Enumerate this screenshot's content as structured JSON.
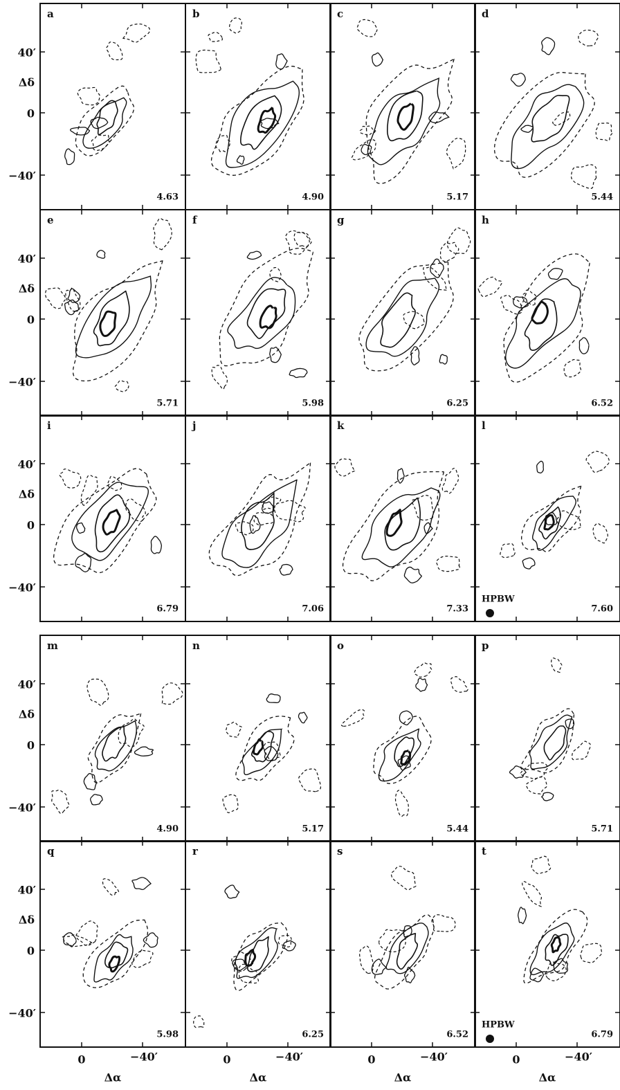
{
  "panels": [
    {
      "letter": "a",
      "velocity": "4.63"
    },
    {
      "letter": "b",
      "velocity": "4.90"
    },
    {
      "letter": "c",
      "velocity": "5.17"
    },
    {
      "letter": "d",
      "velocity": "5.44"
    },
    {
      "letter": "e",
      "velocity": "5.71"
    },
    {
      "letter": "f",
      "velocity": "5.98"
    },
    {
      "letter": "g",
      "velocity": "6.25"
    },
    {
      "letter": "h",
      "velocity": "6.52"
    },
    {
      "letter": "i",
      "velocity": "6.79"
    },
    {
      "letter": "j",
      "velocity": "7.06"
    },
    {
      "letter": "k",
      "velocity": "7.33"
    },
    {
      "letter": "l",
      "velocity": "7.60"
    },
    {
      "letter": "m",
      "velocity": "4.90"
    },
    {
      "letter": "n",
      "velocity": "5.17"
    },
    {
      "letter": "o",
      "velocity": "5.44"
    },
    {
      "letter": "p",
      "velocity": "5.71"
    },
    {
      "letter": "q",
      "velocity": "5.98"
    },
    {
      "letter": "r",
      "velocity": "6.25"
    },
    {
      "letter": "s",
      "velocity": "6.52"
    },
    {
      "letter": "t",
      "velocity": "6.79"
    }
  ],
  "y_axis": {
    "ticks": [
      "40′",
      "0",
      "−40′"
    ],
    "label": "Δδ"
  },
  "x_axis": {
    "ticks": [
      "0",
      "−40′"
    ],
    "label": "Δα"
  },
  "beam_label": "HPBW"
}
